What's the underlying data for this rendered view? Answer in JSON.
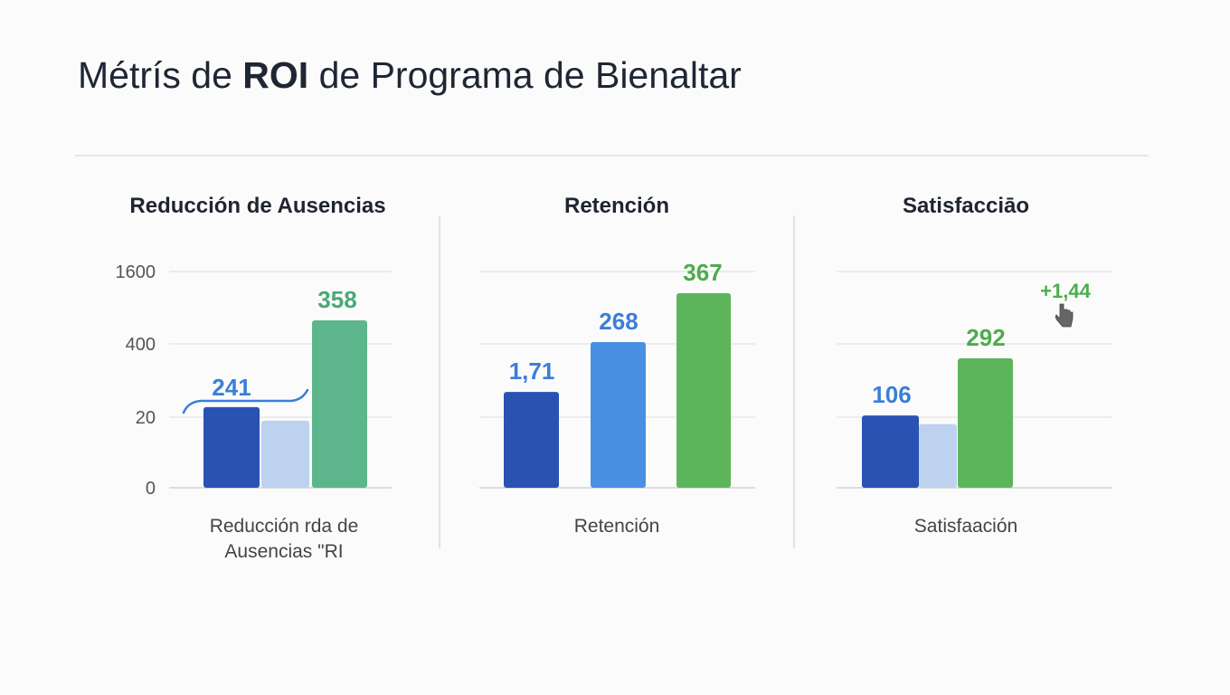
{
  "title": {
    "pre": "Métrís de ",
    "bold": "ROI",
    "post": " de Programa de Bienaltar"
  },
  "colors": {
    "dark_blue": "#2952b3",
    "light_blue": "#bdd2ef",
    "mid_blue": "#4a90e2",
    "teal_green": "#5db68b",
    "green": "#5cb55a",
    "label_blue": "#3b7fd6",
    "label_green": "#4cad4c",
    "label_teal": "#4aa877"
  },
  "chart_data": [
    {
      "type": "bar",
      "title": "Reducción de Ausencias",
      "xlabel_lines": [
        "Reducción rda de",
        "Ausencias \"RI"
      ],
      "yticks": [
        0,
        20,
        400,
        1600
      ],
      "ylim": [
        0,
        1600
      ],
      "grid": true,
      "bars": [
        {
          "value": 72,
          "color": "dark_blue",
          "label": "241",
          "label_color": "label_blue"
        },
        {
          "value": 19,
          "color": "light_blue",
          "label": ""
        },
        {
          "value": 790,
          "color": "teal_green",
          "label": "358",
          "label_color": "label_teal"
        }
      ],
      "annotation": {
        "type": "bracket",
        "over_bars": [
          0,
          1
        ]
      }
    },
    {
      "type": "bar",
      "title": "Retención",
      "xlabel_lines": [
        "Retención"
      ],
      "yticks": [
        0,
        20,
        400,
        1600
      ],
      "ylim": [
        0,
        1600
      ],
      "grid": true,
      "bars": [
        {
          "value": 151,
          "color": "dark_blue",
          "label": "1,71",
          "label_color": "label_blue"
        },
        {
          "value": 430,
          "color": "mid_blue",
          "label": "268",
          "label_color": "label_blue"
        },
        {
          "value": 1240,
          "color": "green",
          "label": "367",
          "label_color": "label_green"
        }
      ]
    },
    {
      "type": "bar",
      "title": "Satisfacciāo",
      "xlabel_lines": [
        "Satisfaación"
      ],
      "yticks": [
        0,
        20,
        400,
        1600
      ],
      "ylim": [
        0,
        1600
      ],
      "grid": true,
      "bars": [
        {
          "value": 29,
          "color": "dark_blue",
          "label": "106",
          "label_color": "label_blue"
        },
        {
          "value": 18,
          "color": "light_blue",
          "label": ""
        },
        {
          "value": 325,
          "color": "green",
          "label": "292",
          "label_color": "label_green"
        }
      ],
      "annotation": {
        "type": "callout",
        "text": "+1,44",
        "icon": "hand-pointer-icon"
      }
    }
  ]
}
